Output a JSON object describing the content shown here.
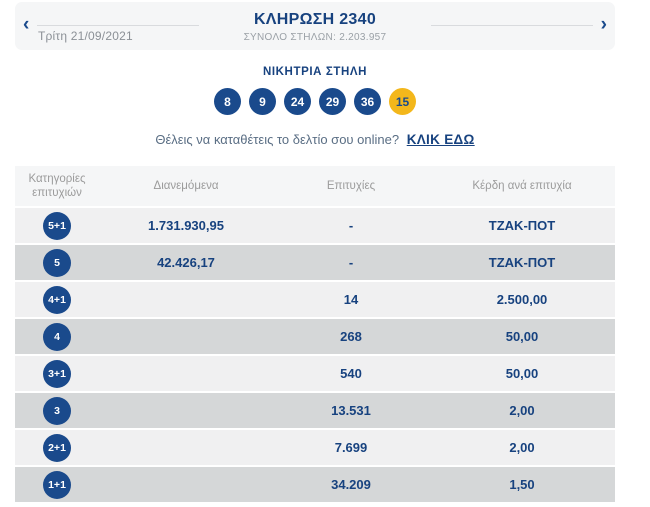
{
  "colors": {
    "navy": "#1a4a8c",
    "gold": "#f3b71b",
    "row_light": "#f0f0f1",
    "row_dark": "#d5d7d8"
  },
  "draw_header": {
    "prev_icon": "‹",
    "next_icon": "›",
    "date": "Τρίτη 21/09/2021",
    "title": "ΚΛΗΡΩΣΗ 2340",
    "total_columns": "ΣΥΝΟΛΟ ΣΤΗΛΩΝ: 2.203.957"
  },
  "winning_column": {
    "title": "ΝΙΚΗΤΡΙΑ ΣΤΗΛΗ",
    "numbers": [
      "8",
      "9",
      "24",
      "29",
      "36"
    ],
    "joker": "15"
  },
  "online_prompt": {
    "question": "Θέλεις να καταθέτεις το δελτίο σου online?",
    "link_label": "ΚΛΙΚ ΕΔΩ"
  },
  "results_table": {
    "headers": [
      "Κατηγορίες επιτυχιών",
      "Διανεμόμενα",
      "Επιτυχίες",
      "Κέρδη ανά επιτυχία"
    ],
    "rows": [
      {
        "category": "5+1",
        "distributed": "1.731.930,95",
        "winners": "-",
        "prize": "ΤΖΑΚ-ΠΟΤ"
      },
      {
        "category": "5",
        "distributed": "42.426,17",
        "winners": "-",
        "prize": "ΤΖΑΚ-ΠΟΤ"
      },
      {
        "category": "4+1",
        "distributed": "",
        "winners": "14",
        "prize": "2.500,00"
      },
      {
        "category": "4",
        "distributed": "",
        "winners": "268",
        "prize": "50,00"
      },
      {
        "category": "3+1",
        "distributed": "",
        "winners": "540",
        "prize": "50,00"
      },
      {
        "category": "3",
        "distributed": "",
        "winners": "13.531",
        "prize": "2,00"
      },
      {
        "category": "2+1",
        "distributed": "",
        "winners": "7.699",
        "prize": "2,00"
      },
      {
        "category": "1+1",
        "distributed": "",
        "winners": "34.209",
        "prize": "1,50"
      }
    ]
  }
}
